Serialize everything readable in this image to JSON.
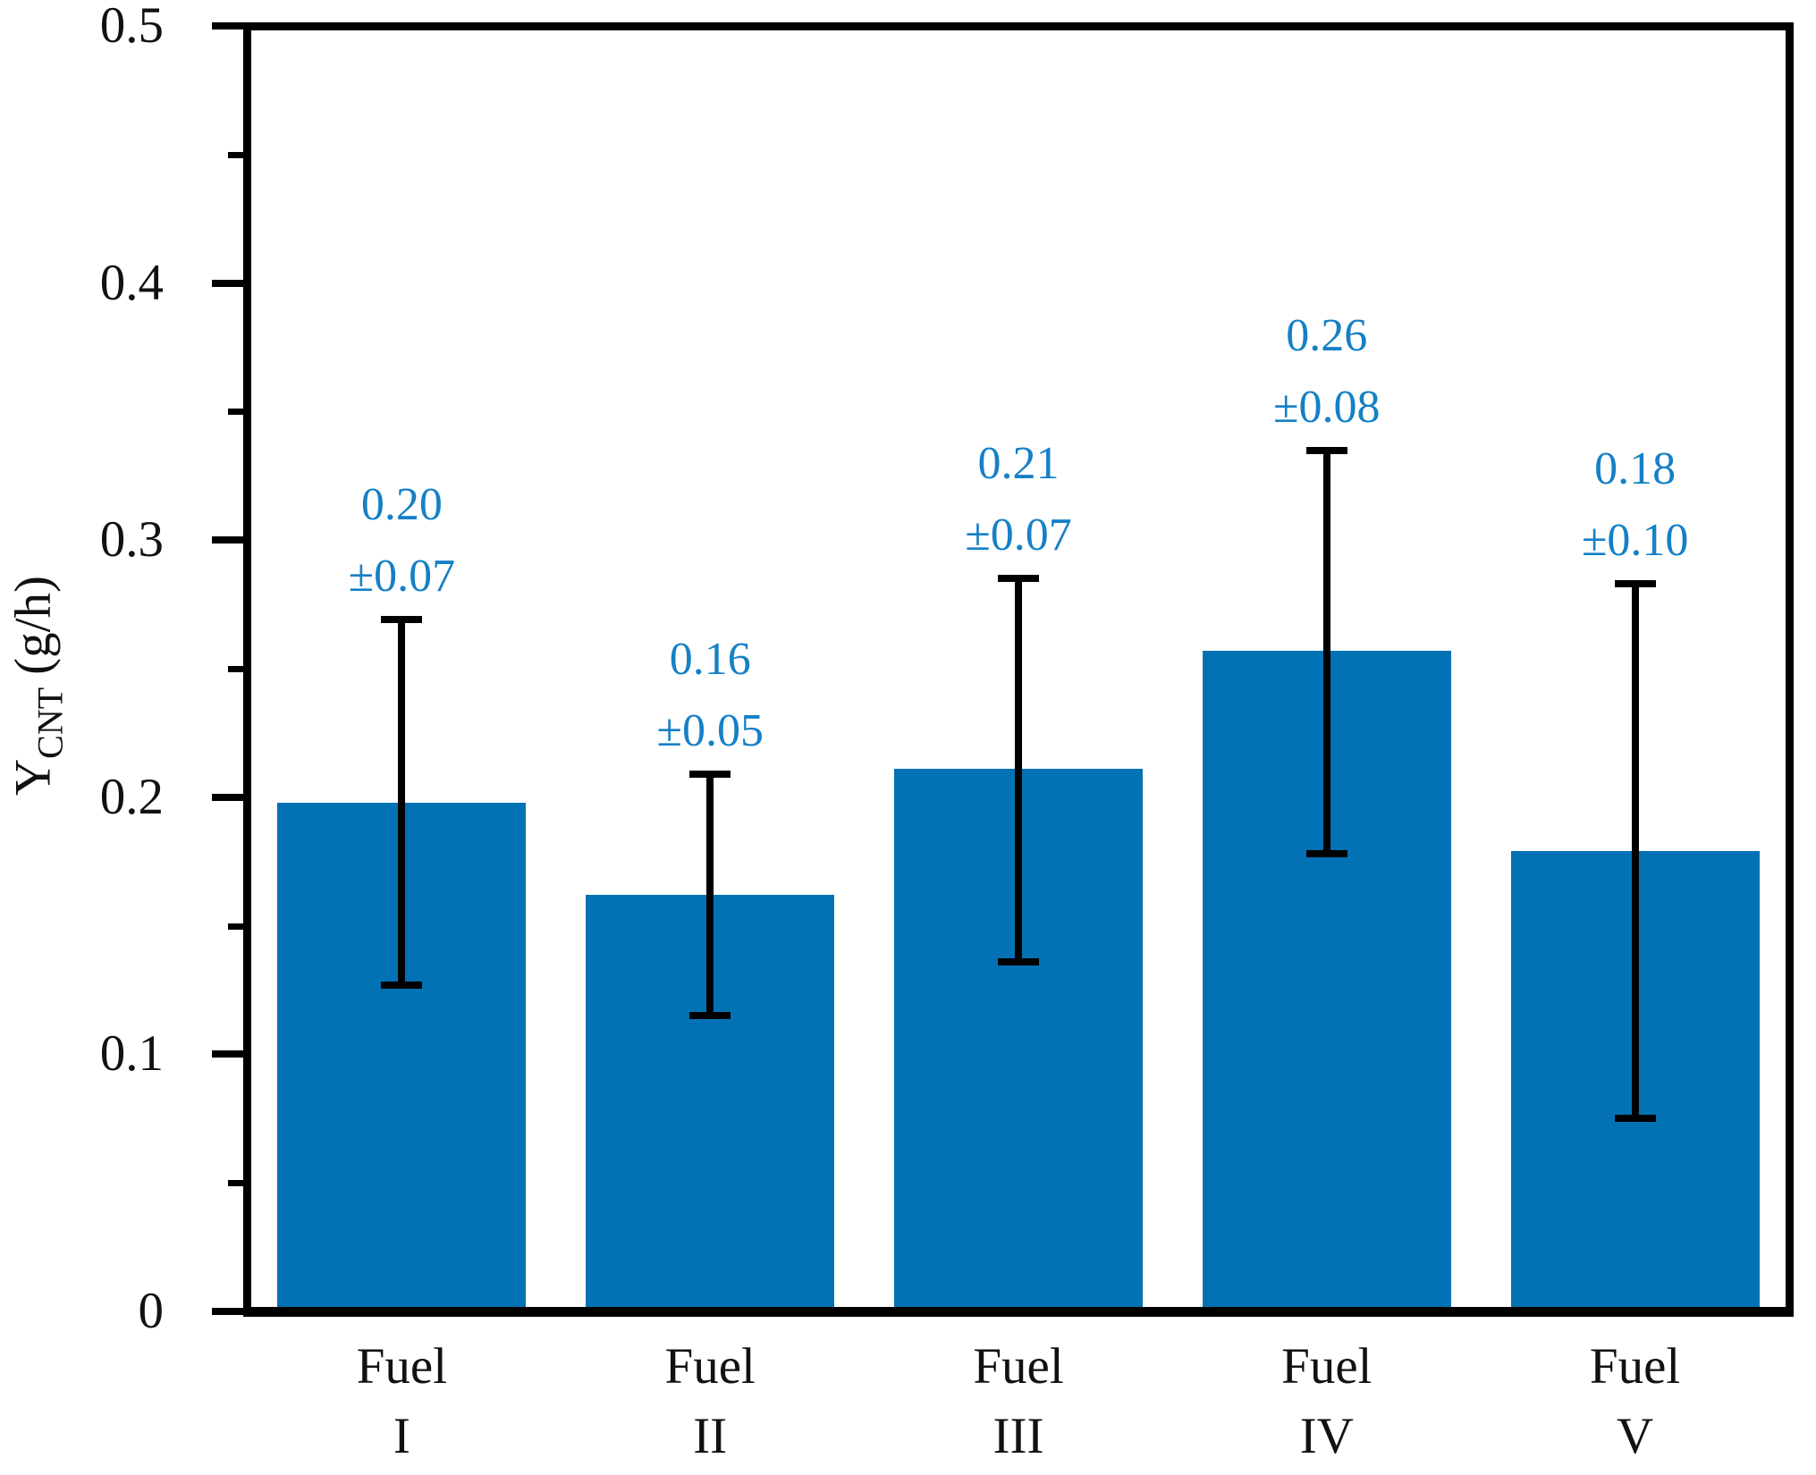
{
  "chart_data": {
    "type": "bar",
    "title": "",
    "xlabel": "",
    "ylabel": "Y_CNT (g/h)",
    "y_axis": {
      "label_main": "Y",
      "label_sub": "CNT",
      "label_units": "(g/h)",
      "min": 0,
      "max": 0.5,
      "major_ticks": [
        {
          "v": 0,
          "label": "0"
        },
        {
          "v": 0.1,
          "label": "0.1"
        },
        {
          "v": 0.2,
          "label": "0.2"
        },
        {
          "v": 0.3,
          "label": "0.3"
        },
        {
          "v": 0.4,
          "label": "0.4"
        },
        {
          "v": 0.5,
          "label": "0.5"
        }
      ],
      "minor_ticks": [
        0.05,
        0.15,
        0.25,
        0.35,
        0.45
      ]
    },
    "categories": [
      "Fuel I",
      "Fuel II",
      "Fuel III",
      "Fuel IV",
      "Fuel V"
    ],
    "bars": [
      {
        "category_line1": "Fuel",
        "category_line2": "I",
        "value": 0.198,
        "value_label": "0.20",
        "error_label": "±0.07",
        "error_top": 0.269,
        "error_bottom": 0.127
      },
      {
        "category_line1": "Fuel",
        "category_line2": "II",
        "value": 0.162,
        "value_label": "0.16",
        "error_label": "±0.05",
        "error_top": 0.209,
        "error_bottom": 0.115
      },
      {
        "category_line1": "Fuel",
        "category_line2": "III",
        "value": 0.211,
        "value_label": "0.21",
        "error_label": "±0.07",
        "error_top": 0.285,
        "error_bottom": 0.136
      },
      {
        "category_line1": "Fuel",
        "category_line2": "IV",
        "value": 0.257,
        "value_label": "0.26",
        "error_label": "±0.08",
        "error_top": 0.335,
        "error_bottom": 0.178
      },
      {
        "category_line1": "Fuel",
        "category_line2": "V",
        "value": 0.179,
        "value_label": "0.18",
        "error_label": "±0.10",
        "error_top": 0.283,
        "error_bottom": 0.075
      }
    ],
    "colors": {
      "bar": "#0272b5",
      "data_label_text": "#1580c5",
      "axis": "#000000"
    },
    "legend": "none",
    "grid": "off"
  }
}
